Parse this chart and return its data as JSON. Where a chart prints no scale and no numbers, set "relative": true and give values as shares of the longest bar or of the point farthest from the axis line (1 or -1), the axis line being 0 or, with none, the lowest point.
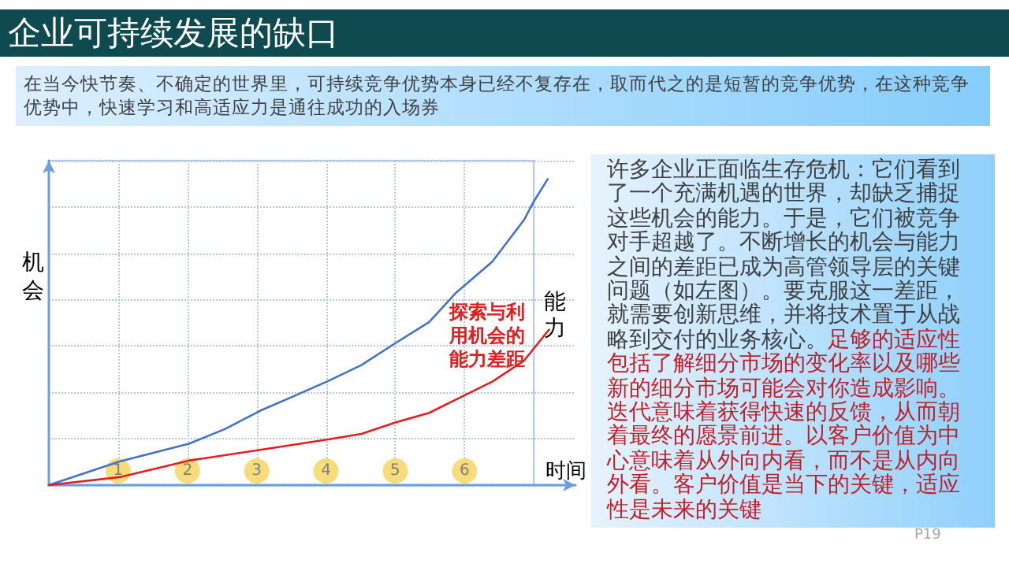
{
  "chart_data": {
    "type": "line",
    "title": "企业可持续发展的缺口",
    "subtitle": "在当今快节奏、不确定的世界里，可持续竞争优势本身已经不复存在，取而代之的是短暂的竞争优势，在这种竞争优势中，快速学习和高适应力是通往成功的入场券",
    "xlabel": "时间",
    "ylabel": "机会",
    "relative": true,
    "grid": true,
    "xlim": [
      0,
      7.6
    ],
    "xticks": [
      1,
      2,
      3,
      4,
      5,
      6,
      {
        "value": 7,
        "label": null
      }
    ],
    "series": [
      {
        "color": "#4472c4",
        "x": [
          0,
          1.02,
          2.02,
          2.54,
          3.05,
          3.52,
          4.03,
          4.51,
          5.01,
          5.49,
          5.87,
          6.4,
          6.86,
          7.0,
          7.2
        ],
        "values": [
          0,
          0.077,
          0.135,
          0.183,
          0.243,
          0.289,
          0.34,
          0.392,
          0.465,
          0.533,
          0.627,
          0.73,
          0.867,
          0.927,
          1
        ]
      },
      {
        "name": "能力",
        "color": "#e02020",
        "x": [
          0,
          1.02,
          2.02,
          3.05,
          4.03,
          4.51,
          5.01,
          5.49,
          5.87,
          6.4,
          6.86,
          7.22
        ],
        "values": [
          0,
          0.026,
          0.08,
          0.115,
          0.149,
          0.167,
          0.205,
          0.236,
          0.279,
          0.338,
          0.407,
          0.508
        ]
      }
    ],
    "annotations": [
      "探索与利用机会的能力差距",
      "许多企业正面临生存危机：它们看到了一个充满机遇的世界，却缺乏捕捉这些机会的能力。于是，它们被竞争对手超越了。不断增长的机会与能力之间的差距已成为高管领导层的关键问题（如左图）。要克服这一差距，就需要创新思维，并将技术置于从战略到交付的业务核心。",
      "足够的适应性包括了解细分市场的变化率以及哪些新的细分市场可能会对你造成影响。迭代意味着获得快速的反馈，从而朝着最终的愿景前进。以客户价值为中心意味着从外向内看，而不是从内向外看。客户价值是当下的关键，适应性是未来的关键",
      "P19"
    ]
  }
}
